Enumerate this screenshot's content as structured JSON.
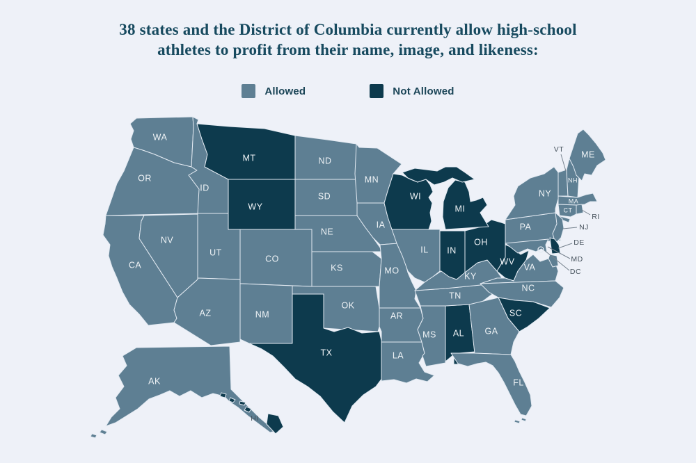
{
  "title": {
    "line1": "38 states and the District of Columbia currently allow high-school",
    "line2": "athletes to profit from their name, image, and likeness:"
  },
  "legend": {
    "allowed_label": "Allowed",
    "not_allowed_label": "Not Allowed"
  },
  "colors": {
    "allowed": "#5E7F93",
    "not_allowed": "#0D3A4D",
    "background": "#EEF1F8",
    "state_border": "#E3EAF2",
    "label_inside": "#EFF3F6",
    "label_outside": "#46525C",
    "leader_line": "#76828E",
    "title_text": "#174A5F",
    "legend_text": "#1B4557"
  },
  "map": {
    "states": [
      {
        "abbr": "WA",
        "status": "allowed"
      },
      {
        "abbr": "OR",
        "status": "allowed"
      },
      {
        "abbr": "CA",
        "status": "allowed"
      },
      {
        "abbr": "NV",
        "status": "allowed"
      },
      {
        "abbr": "ID",
        "status": "allowed"
      },
      {
        "abbr": "MT",
        "status": "not_allowed"
      },
      {
        "abbr": "WY",
        "status": "not_allowed"
      },
      {
        "abbr": "UT",
        "status": "allowed"
      },
      {
        "abbr": "CO",
        "status": "allowed"
      },
      {
        "abbr": "AZ",
        "status": "allowed"
      },
      {
        "abbr": "NM",
        "status": "allowed"
      },
      {
        "abbr": "ND",
        "status": "allowed"
      },
      {
        "abbr": "SD",
        "status": "allowed"
      },
      {
        "abbr": "NE",
        "status": "allowed"
      },
      {
        "abbr": "KS",
        "status": "allowed"
      },
      {
        "abbr": "OK",
        "status": "allowed"
      },
      {
        "abbr": "TX",
        "status": "not_allowed"
      },
      {
        "abbr": "MN",
        "status": "allowed"
      },
      {
        "abbr": "IA",
        "status": "allowed"
      },
      {
        "abbr": "MO",
        "status": "allowed"
      },
      {
        "abbr": "AR",
        "status": "allowed"
      },
      {
        "abbr": "LA",
        "status": "allowed"
      },
      {
        "abbr": "WI",
        "status": "not_allowed"
      },
      {
        "abbr": "IL",
        "status": "allowed"
      },
      {
        "abbr": "MS",
        "status": "allowed"
      },
      {
        "abbr": "AL",
        "status": "not_allowed"
      },
      {
        "abbr": "TN",
        "status": "allowed"
      },
      {
        "abbr": "KY",
        "status": "allowed"
      },
      {
        "abbr": "IN",
        "status": "not_allowed"
      },
      {
        "abbr": "OH",
        "status": "not_allowed"
      },
      {
        "abbr": "MI",
        "status": "not_allowed"
      },
      {
        "abbr": "WV",
        "status": "not_allowed"
      },
      {
        "abbr": "VA",
        "status": "allowed"
      },
      {
        "abbr": "NC",
        "status": "allowed"
      },
      {
        "abbr": "SC",
        "status": "not_allowed"
      },
      {
        "abbr": "GA",
        "status": "allowed"
      },
      {
        "abbr": "FL",
        "status": "allowed"
      },
      {
        "abbr": "PA",
        "status": "allowed"
      },
      {
        "abbr": "NY",
        "status": "allowed"
      },
      {
        "abbr": "NJ",
        "status": "allowed"
      },
      {
        "abbr": "VT",
        "status": "allowed"
      },
      {
        "abbr": "NH",
        "status": "allowed"
      },
      {
        "abbr": "ME",
        "status": "allowed"
      },
      {
        "abbr": "MA",
        "status": "allowed"
      },
      {
        "abbr": "CT",
        "status": "allowed"
      },
      {
        "abbr": "RI",
        "status": "allowed"
      },
      {
        "abbr": "DE",
        "status": "not_allowed"
      },
      {
        "abbr": "MD",
        "status": "allowed"
      },
      {
        "abbr": "DC",
        "status": "allowed"
      },
      {
        "abbr": "AK",
        "status": "allowed"
      },
      {
        "abbr": "HI",
        "status": "not_allowed"
      }
    ]
  }
}
